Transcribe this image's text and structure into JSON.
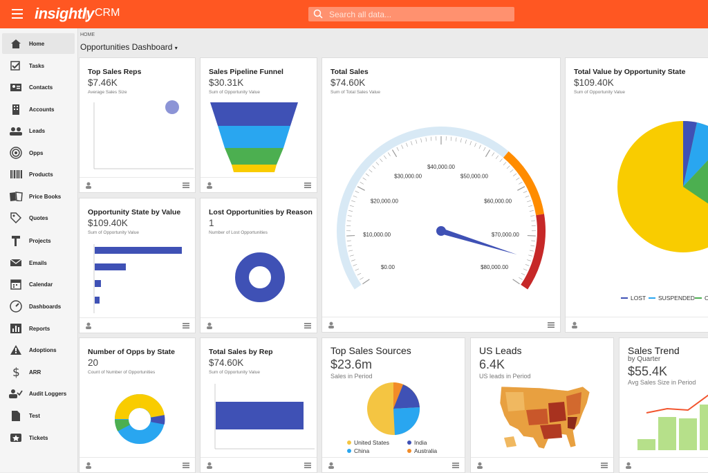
{
  "header": {
    "logo": "insightly",
    "app_name": "CRM",
    "search_placeholder": "Search all data..."
  },
  "sidebar": {
    "items": [
      {
        "label": "Home",
        "icon": "home-icon"
      },
      {
        "label": "Tasks",
        "icon": "tasks-icon"
      },
      {
        "label": "Contacts",
        "icon": "contacts-icon"
      },
      {
        "label": "Accounts",
        "icon": "accounts-icon"
      },
      {
        "label": "Leads",
        "icon": "leads-icon"
      },
      {
        "label": "Opps",
        "icon": "target-icon"
      },
      {
        "label": "Products",
        "icon": "barcode-icon"
      },
      {
        "label": "Price Books",
        "icon": "book-icon"
      },
      {
        "label": "Quotes",
        "icon": "tag-icon"
      },
      {
        "label": "Projects",
        "icon": "hammer-icon"
      },
      {
        "label": "Emails",
        "icon": "email-icon"
      },
      {
        "label": "Calendar",
        "icon": "calendar-icon"
      },
      {
        "label": "Dashboards",
        "icon": "gauge-icon"
      },
      {
        "label": "Reports",
        "icon": "reports-icon"
      },
      {
        "label": "Adoptions",
        "icon": "warning-icon"
      },
      {
        "label": "ARR",
        "icon": "dollar-icon"
      },
      {
        "label": "Audit Loggers",
        "icon": "user-check-icon"
      },
      {
        "label": "Test",
        "icon": "document-icon"
      },
      {
        "label": "Tickets",
        "icon": "ticket-icon"
      }
    ]
  },
  "breadcrumb": "HOME",
  "page_title": "Opportunities Dashboard",
  "cards": {
    "top_sales_reps": {
      "title": "Top Sales Reps",
      "value": "$7.46K",
      "sub": "Average Sales Size"
    },
    "pipeline_funnel": {
      "title": "Sales Pipeline Funnel",
      "value": "$30.31K",
      "sub": "Sum of Opportunity Value"
    },
    "total_sales": {
      "title": "Total Sales",
      "value": "$74.60K",
      "sub": "Sum of Total Sales Value"
    },
    "value_by_state": {
      "title": "Total Value by Opportunity State",
      "value": "$109.40K",
      "sub": "Sum of Opportunity Value"
    },
    "state_by_value": {
      "title": "Opportunity State by Value",
      "value": "$109.40K",
      "sub": "Sum of Opportunity Value"
    },
    "lost_by_reason": {
      "title": "Lost Opportunities by Reason",
      "value": "1",
      "sub": "Number of Lost Opportunities"
    },
    "opps_by_state": {
      "title": "Number of Opps by State",
      "value": "20",
      "sub": "Count of Number of Opportunities"
    },
    "sales_by_rep": {
      "title": "Total Sales by Rep",
      "value": "$74.60K",
      "sub": "Sum of Opportunity Value"
    },
    "top_sources": {
      "title": "Top Sales Sources",
      "value": "$23.6m",
      "sub": "Sales in Period"
    },
    "us_leads": {
      "title": "US Leads",
      "value": "6.4K",
      "sub": "US leads in Period"
    },
    "sales_trend": {
      "title": "Sales Trend",
      "subtitle": "by Quarter",
      "value": "$55.4K",
      "sub": "Avg Sales Size in Period"
    }
  },
  "gauge": {
    "ticks": [
      "$0.00",
      "$10,000.00",
      "$20,000.00",
      "$30,000.00",
      "$40,000.00",
      "$50,000.00",
      "$60,000.00",
      "$70,000.00",
      "$80,000.00"
    ],
    "min": 0,
    "max": 80000,
    "value": 74600
  },
  "legend_state": {
    "items": [
      "LOST",
      "SUSPENDED",
      "O"
    ]
  },
  "legend_sources": {
    "items": [
      "United States",
      "China",
      "India",
      "Australia"
    ]
  },
  "colors": {
    "brand": "#ff5722",
    "blue": "#3f51b5",
    "light_blue": "#29a6f0",
    "green": "#4caf50",
    "yellow": "#f9cc00",
    "orange": "#ff8c00",
    "red": "#c62828"
  }
}
